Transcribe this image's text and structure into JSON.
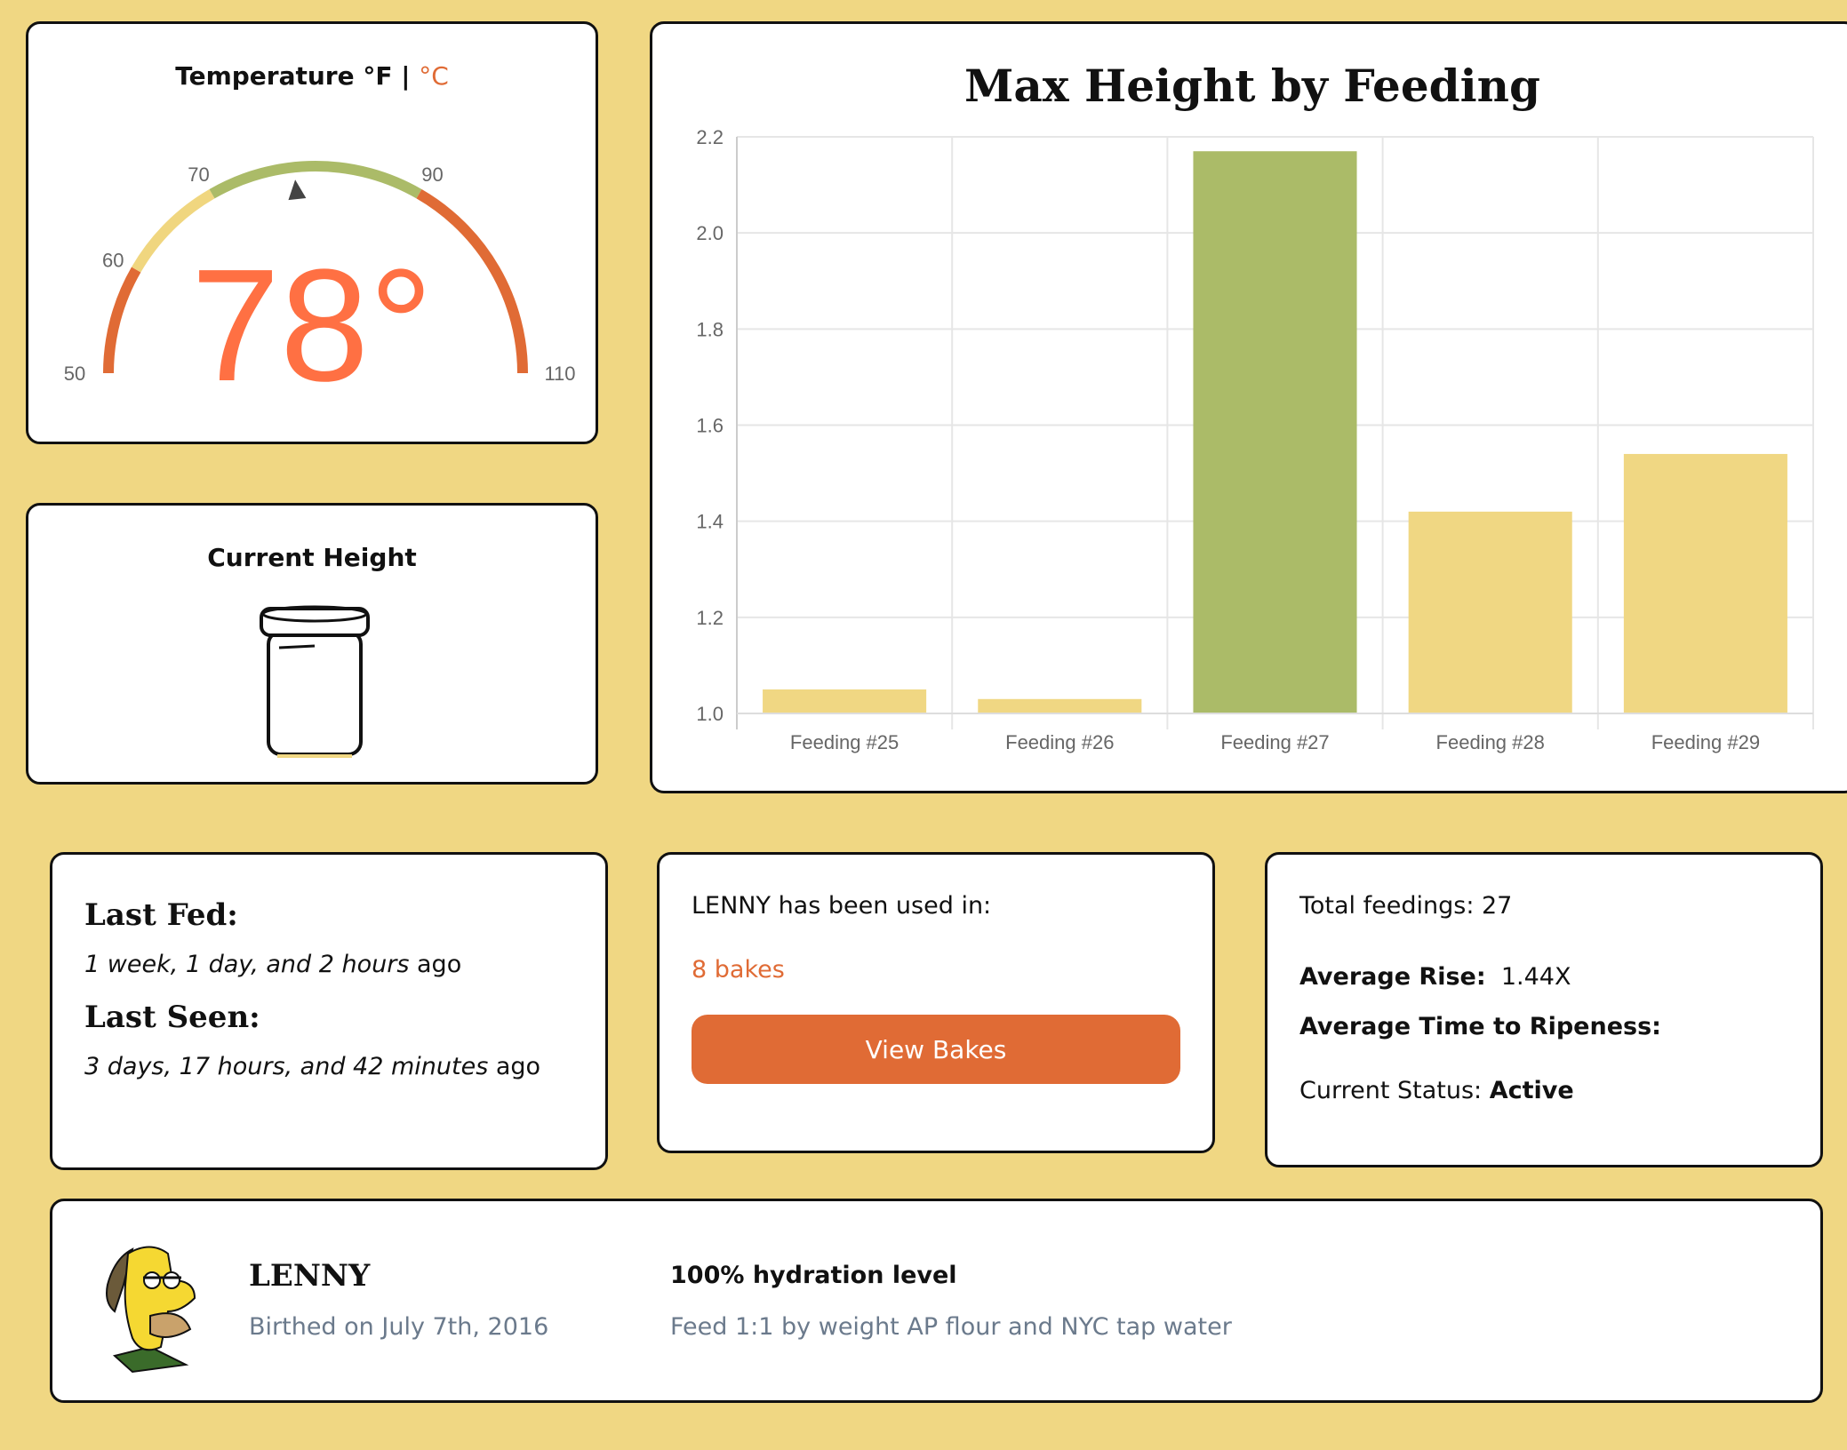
{
  "temperature": {
    "title_f": "Temperature °F",
    "sep": "|",
    "title_c": "°C",
    "value": 78,
    "display": "78°",
    "min": 50,
    "max": 110,
    "ticks": [
      "50",
      "60",
      "70",
      "90",
      "110"
    ],
    "bands": [
      {
        "from": 50,
        "to": 60,
        "color": "#e06b35"
      },
      {
        "from": 60,
        "to": 70,
        "color": "#f0d67f"
      },
      {
        "from": 70,
        "to": 90,
        "color": "#abbb68"
      },
      {
        "from": 90,
        "to": 110,
        "color": "#e06b35"
      }
    ]
  },
  "height": {
    "title": "Current Height"
  },
  "chart_data": {
    "type": "bar",
    "title": "Max Height by Feeding",
    "categories": [
      "Feeding #25",
      "Feeding #26",
      "Feeding #27",
      "Feeding #28",
      "Feeding #29"
    ],
    "values": [
      1.05,
      1.03,
      2.17,
      1.42,
      1.54
    ],
    "colors": [
      "#f0d783",
      "#f0d783",
      "#abbb68",
      "#f0d783",
      "#f0d783"
    ],
    "ylim": [
      1.0,
      2.2
    ],
    "yticks": [
      "1.0",
      "1.2",
      "1.4",
      "1.6",
      "1.8",
      "2.0",
      "2.2"
    ],
    "xlabel": "",
    "ylabel": "",
    "grid": true
  },
  "fed": {
    "last_fed_label": "Last Fed:",
    "last_fed_value": "1 week, 1 day, and 2 hours",
    "ago": "ago",
    "last_seen_label": "Last Seen:",
    "last_seen_value": "3 days, 17 hours, and 42 minutes"
  },
  "bakes": {
    "intro": "LENNY has been used in:",
    "count": "8 bakes",
    "button": "View Bakes"
  },
  "stats": {
    "total": "Total feedings: 27",
    "avg_rise_label": "Average Rise:",
    "avg_rise_value": "1.44X",
    "avg_time_label": "Average Time to Ripeness:",
    "status_label": "Current Status:",
    "status_value": "Active"
  },
  "profile": {
    "name": "LENNY",
    "birth": "Birthed on July 7th, 2016",
    "hydration": "100% hydration level",
    "feed": "Feed 1:1 by weight AP flour and NYC tap water"
  }
}
